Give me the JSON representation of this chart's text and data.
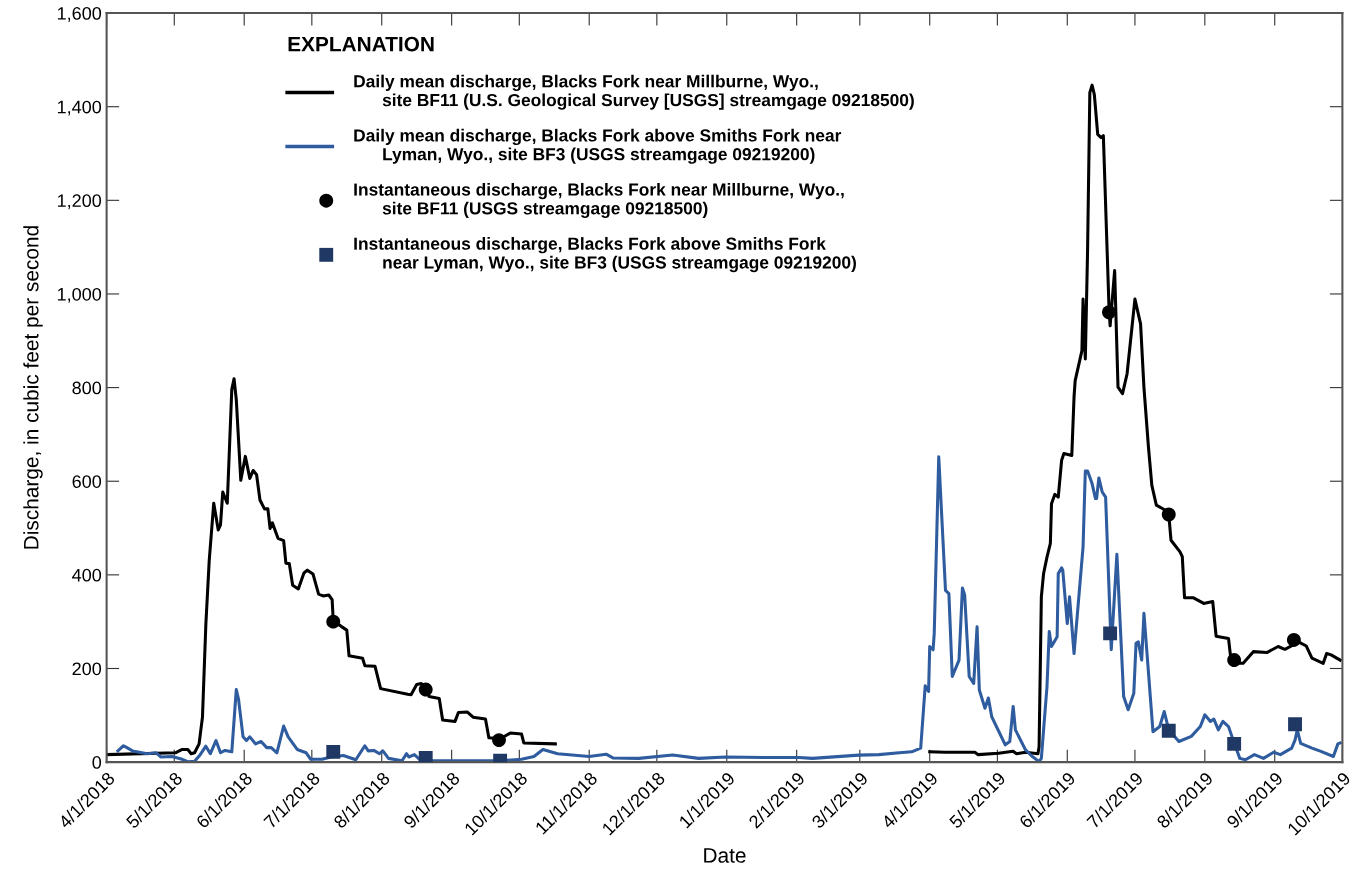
{
  "chart_data": {
    "type": "line",
    "xlabel": "Date",
    "ylabel": "Discharge, in cubic feet per second",
    "legend_title": "EXPLANATION",
    "legend": "top",
    "grid": false,
    "xlim": [
      "2018-04-01",
      "2019-10-01"
    ],
    "xticks": [
      {
        "value": "2018-04-01",
        "label": "4/1/2018"
      },
      {
        "value": "2018-05-01",
        "label": "5/1/2018"
      },
      {
        "value": "2018-06-01",
        "label": "6/1/2018"
      },
      {
        "value": "2018-07-01",
        "label": "7/1/2018"
      },
      {
        "value": "2018-08-01",
        "label": "8/1/2018"
      },
      {
        "value": "2018-09-01",
        "label": "9/1/2018"
      },
      {
        "value": "2018-10-01",
        "label": "10/1/2018"
      },
      {
        "value": "2018-11-01",
        "label": "11/1/2018"
      },
      {
        "value": "2018-12-01",
        "label": "12/1/2018"
      },
      {
        "value": "2019-01-01",
        "label": "1/1/2019"
      },
      {
        "value": "2019-02-01",
        "label": "2/1/2019"
      },
      {
        "value": "2019-03-01",
        "label": "3/1/2019"
      },
      {
        "value": "2019-04-01",
        "label": "4/1/2019"
      },
      {
        "value": "2019-05-01",
        "label": "5/1/2019"
      },
      {
        "value": "2019-06-01",
        "label": "6/1/2019"
      },
      {
        "value": "2019-07-01",
        "label": "7/1/2019"
      },
      {
        "value": "2019-08-01",
        "label": "8/1/2019"
      },
      {
        "value": "2019-09-01",
        "label": "9/1/2019"
      },
      {
        "value": "2019-10-01",
        "label": "10/1/2019"
      }
    ],
    "ylim": [
      0,
      1600
    ],
    "yticks": [
      0,
      200,
      400,
      600,
      800,
      {
        "value": 1000,
        "label": "1,000"
      },
      {
        "value": 1200,
        "label": "1,200"
      },
      {
        "value": 1400,
        "label": "1,400"
      },
      {
        "value": 1600,
        "label": "1,600"
      }
    ],
    "series": [
      {
        "name": "Daily mean discharge, Blacks Fork near Millburne, Wyo.,\n      site BF11 (U.S. Geological Survey [USGS] streamgage 09218500)",
        "type": "line",
        "color": "#000000",
        "line_style": "solid",
        "marker": "none",
        "x": [
          "2018-04-01",
          "2018-05-01T12:00",
          "2018-05-04T12:00",
          "2018-05-07",
          "2018-05-08T12:00",
          "2018-05-10",
          "2018-05-12",
          "2018-05-13T12:00",
          "2018-05-15",
          "2018-05-16T12:00",
          "2018-05-18T12:00",
          "2018-05-20T12:00",
          "2018-05-21T12:00",
          "2018-05-22T12:00",
          "2018-05-24T12:00",
          "2018-05-26T12:00",
          "2018-05-27T12:00",
          "2018-05-28T12:00",
          "2018-05-30T12:00",
          "2018-06-01T12:00",
          "2018-06-03T12:00",
          "2018-06-05",
          "2018-06-06T12:00",
          "2018-06-08",
          "2018-06-10",
          "2018-06-11T12:00",
          "2018-06-12T12:00",
          "2018-06-13T12:00",
          "2018-06-16",
          "2018-06-18T12:00",
          "2018-06-19T12:00",
          "2018-06-21",
          "2018-06-22T12:00",
          "2018-06-25",
          "2018-06-27T12:00",
          "2018-06-29",
          "2018-07-01T12:00",
          "2018-07-04",
          "2018-07-06",
          "2018-07-08T12:00",
          "2018-07-10",
          "2018-07-10T12:00",
          "2018-07-14",
          "2018-07-16T12:00",
          "2018-07-17T12:00",
          "2018-07-23T12:00",
          "2018-07-24T12:00",
          "2018-07-29",
          "2018-07-31T12:00",
          "2018-08-12T12:00",
          "2018-08-14",
          "2018-08-16T12:00",
          "2018-08-18T12:00",
          "2018-08-20T12:00",
          "2018-08-22",
          "2018-08-26T12:00",
          "2018-08-28",
          "2018-09-02T12:00",
          "2018-09-04",
          "2018-09-08",
          "2018-09-10T12:00",
          "2018-09-16",
          "2018-09-17T12:00",
          "2018-09-22T12:00",
          "2018-09-27",
          "2018-10-02",
          "2018-10-03",
          "2018-10-17",
          "2019-01-01",
          "2019-04-01",
          "2019-04-08",
          "2019-04-21",
          "2019-04-22T12:00",
          "2019-05-01T12:00",
          "2019-05-08",
          "2019-05-09T12:00",
          "2019-05-13T12:00",
          "2019-05-19",
          "2019-05-19T12:00",
          "2019-05-20T12:00",
          "2019-05-21T12:00",
          "2019-05-23",
          "2019-05-24T12:00",
          "2019-05-25",
          "2019-05-26T12:00",
          "2019-05-28",
          "2019-05-29T12:00",
          "2019-05-30T12:00",
          "2019-06-03",
          "2019-06-04",
          "2019-06-04T12:00",
          "2019-06-07T12:00",
          "2019-06-08",
          "2019-06-09",
          "2019-06-10",
          "2019-06-11",
          "2019-06-12",
          "2019-06-13",
          "2019-06-14T12:00",
          "2019-06-16",
          "2019-06-17",
          "2019-06-19T12:00",
          "2019-06-20",
          "2019-06-22",
          "2019-06-23T12:00",
          "2019-06-25T12:00",
          "2019-06-27T12:00",
          "2019-07-01",
          "2019-07-03T12:00",
          "2019-07-05",
          "2019-07-07",
          "2019-07-08T12:00",
          "2019-07-10T12:00",
          "2019-07-14T12:00",
          "2019-07-16",
          "2019-07-17",
          "2019-07-21",
          "2019-07-22",
          "2019-07-23",
          "2019-07-27",
          "2019-07-31T12:00",
          "2019-08-04T12:00",
          "2019-08-06",
          "2019-08-11T12:00",
          "2019-08-12T12:00",
          "2019-08-15",
          "2019-08-18",
          "2019-08-22T12:00",
          "2019-08-28T12:00",
          "2019-09-02T12:00",
          "2019-09-05T12:00",
          "2019-09-09",
          "2019-09-11T12:00",
          "2019-09-15",
          "2019-09-17T12:00",
          "2019-09-22T12:00",
          "2019-09-24",
          "2019-09-26",
          "2019-09-30"
        ],
        "values": [
          16,
          20,
          27,
          27,
          18,
          20,
          39,
          96,
          294,
          431,
          553,
          496,
          507,
          577,
          553,
          796,
          819,
          774,
          602,
          653,
          606,
          623,
          614,
          560,
          541,
          541,
          499,
          511,
          478,
          473,
          425,
          424,
          378,
          370,
          404,
          410,
          402,
          359,
          355,
          357,
          347,
          302,
          290,
          282,
          227,
          222,
          206,
          205,
          157,
          145,
          144,
          166,
          168,
          157,
          140,
          136,
          90,
          87,
          106,
          107,
          96,
          92,
          52,
          50,
          62,
          60,
          41,
          39,
          null,
          22,
          21,
          21,
          16,
          19,
          23,
          18,
          21,
          18,
          33,
          353,
          403,
          438,
          467,
          552,
          572,
          566,
          645,
          659,
          655,
          780,
          815,
          879,
          989,
          861,
          1092,
          1430,
          1446,
          1426,
          1341,
          1334,
          1338,
          971,
          932,
          1050,
          801,
          787,
          829,
          989,
          936,
          800,
          673,
          591,
          549,
          538,
          529,
          474,
          449,
          439,
          351,
          351,
          339,
          343,
          269,
          264,
          222,
          211,
          211,
          236,
          234,
          247,
          241,
          250,
          257,
          248,
          222,
          211,
          232,
          229,
          218
        ]
      },
      {
        "name": "Daily mean discharge, Blacks Fork above Smiths Fork near\n      Lyman, Wyo., site BF3 (USGS streamgage 09219200)",
        "type": "line",
        "color": "#2e5c9e",
        "line_style": "solid",
        "marker": "none",
        "x": [
          "2018-04-06",
          "2018-04-08T12:00",
          "2018-04-10",
          "2018-04-12T12:00",
          "2018-04-19",
          "2018-04-23",
          "2018-04-25",
          "2018-04-30",
          "2018-05-04T12:00",
          "2018-05-07",
          "2018-05-10",
          "2018-05-12T12:00",
          "2018-05-15",
          "2018-05-17",
          "2018-05-19T12:00",
          "2018-05-21T12:00",
          "2018-05-23T12:00",
          "2018-05-26T12:00",
          "2018-05-28T12:00",
          "2018-05-29T12:00",
          "2018-05-31T12:00",
          "2018-06-02",
          "2018-06-03T12:00",
          "2018-06-06",
          "2018-06-08T12:00",
          "2018-06-11",
          "2018-06-13",
          "2018-06-15T12:00",
          "2018-06-18T12:00",
          "2018-06-20T12:00",
          "2018-06-24T12:00",
          "2018-06-28T12:00",
          "2018-06-30T12:00",
          "2018-07-05T12:00",
          "2018-07-09T12:00",
          "2018-07-15",
          "2018-07-20T12:00",
          "2018-07-22T12:00",
          "2018-07-24T12:00",
          "2018-07-26",
          "2018-07-28T12:00",
          "2018-07-31",
          "2018-08-01T12:00",
          "2018-08-04",
          "2018-08-10",
          "2018-08-12",
          "2018-08-13",
          "2018-08-15T12:00",
          "2018-08-18",
          "2018-08-23T12:00",
          "2018-08-31T12:00",
          "2018-09-22T12:00",
          "2018-10-02",
          "2018-10-07T12:00",
          "2018-10-11T12:00",
          "2018-10-18",
          "2018-11-01",
          "2018-11-08T12:00",
          "2018-11-11T12:00",
          "2018-11-23",
          "2018-12-08",
          "2018-12-19T12:00",
          "2018-12-31T12:00",
          "2019-01-18",
          "2019-02-02",
          "2019-02-08",
          "2019-02-28T12:00",
          "2019-03-09T12:00",
          "2019-03-18T12:00",
          "2019-03-24",
          "2019-03-28",
          "2019-03-30",
          "2019-03-31T12:00",
          "2019-04-01",
          "2019-04-02T12:00",
          "2019-04-03",
          "2019-04-05",
          "2019-04-08",
          "2019-04-09T12:00",
          "2019-04-11",
          "2019-04-14",
          "2019-04-15T12:00",
          "2019-04-16T12:00",
          "2019-04-18T12:00",
          "2019-04-20T12:00",
          "2019-04-22",
          "2019-04-23",
          "2019-04-25T12:00",
          "2019-04-27",
          "2019-04-28T12:00",
          "2019-05-04T12:00",
          "2019-05-06T12:00",
          "2019-05-08",
          "2019-05-09",
          "2019-05-13T12:00",
          "2019-05-16T12:00",
          "2019-05-19T12:00",
          "2019-05-20T12:00",
          "2019-05-23",
          "2019-05-24",
          "2019-05-25",
          "2019-05-27T12:00",
          "2019-05-28",
          "2019-05-29T12:00",
          "2019-05-30",
          "2019-06-01",
          "2019-06-02",
          "2019-06-04",
          "2019-06-08",
          "2019-06-09",
          "2019-06-10",
          "2019-06-12",
          "2019-06-13T12:00",
          "2019-06-14",
          "2019-06-15",
          "2019-06-16T12:00",
          "2019-06-18",
          "2019-06-20T12:00",
          "2019-06-23",
          "2019-06-26",
          "2019-06-28",
          "2019-06-30T12:00",
          "2019-07-01T12:00",
          "2019-07-02T12:00",
          "2019-07-04",
          "2019-07-05",
          "2019-07-09",
          "2019-07-12",
          "2019-07-14",
          "2019-07-16",
          "2019-07-20T12:00",
          "2019-07-26",
          "2019-07-30",
          "2019-08-01",
          "2019-08-03T12:00",
          "2019-08-05",
          "2019-08-07",
          "2019-08-09",
          "2019-08-11T12:00",
          "2019-08-13",
          "2019-08-16T12:00",
          "2019-08-19",
          "2019-08-23",
          "2019-08-27",
          "2019-08-31T12:00",
          "2019-09-03T12:00",
          "2019-09-08T12:00",
          "2019-09-10",
          "2019-09-11",
          "2019-09-12T12:00",
          "2019-09-17T12:00",
          "2019-09-21T12:00",
          "2019-09-27",
          "2019-09-29",
          "2019-09-30"
        ],
        "values": [
          24,
          35,
          31,
          24,
          18,
          20,
          11,
          12,
          6,
          1,
          2,
          16,
          34,
          18,
          46,
          20,
          25,
          22,
          155,
          134,
          54,
          46,
          54,
          39,
          44,
          31,
          31,
          20,
          77,
          54,
          27,
          20,
          6,
          6,
          11,
          14,
          5,
          20,
          35,
          24,
          25,
          18,
          24,
          8,
          3,
          18,
          11,
          16,
          5,
          3,
          3,
          3,
          6,
          12,
          27,
          18,
          12,
          17,
          9,
          8,
          15,
          8,
          11,
          10,
          10,
          8,
          15,
          16,
          20,
          22,
          30,
          163,
          151,
          247,
          240,
          275,
          652,
          367,
          360,
          183,
          218,
          372,
          357,
          183,
          168,
          289,
          154,
          115,
          137,
          97,
          37,
          44,
          119,
          69,
          26,
          12,
          1,
          8,
          161,
          279,
          247,
          268,
          403,
          415,
          410,
          296,
          353,
          232,
          460,
          622,
          622,
          595,
          563,
          563,
          607,
          577,
          566,
          240,
          444,
          140,
          112,
          147,
          254,
          257,
          218,
          318,
          65,
          76,
          108,
          69,
          44,
          55,
          76,
          101,
          87,
          92,
          69,
          87,
          76,
          55,
          8,
          5,
          16,
          8,
          21,
          16,
          30,
          47,
          69,
          40,
          30,
          23,
          12,
          39,
          41
        ]
      },
      {
        "name": "Instantaneous discharge, Blacks Fork near Millburne, Wyo.,\n      site BF11 (USGS streamgage 09218500)",
        "type": "scatter",
        "color": "#000000",
        "marker": "circle",
        "x": [
          "2018-07-10T12:00",
          "2018-08-20T12:00",
          "2018-09-22",
          "2019-06-19T12:00",
          "2019-07-16",
          "2019-08-14",
          "2019-09-09T12:00"
        ],
        "values": [
          300,
          155,
          47,
          961,
          529,
          218,
          261
        ]
      },
      {
        "name": "Instantaneous discharge, Blacks Fork above Smiths Fork\n      near Lyman, Wyo., site BF3 (USGS streamgage 09219200)",
        "type": "scatter",
        "color": "#1f3864",
        "marker": "square",
        "x": [
          "2018-07-10T12:00",
          "2018-08-20T12:00",
          "2018-09-22T12:00",
          "2019-06-20",
          "2019-07-16",
          "2019-08-14",
          "2019-09-10"
        ],
        "values": [
          22,
          9,
          3,
          275,
          67,
          39,
          81
        ]
      }
    ]
  }
}
